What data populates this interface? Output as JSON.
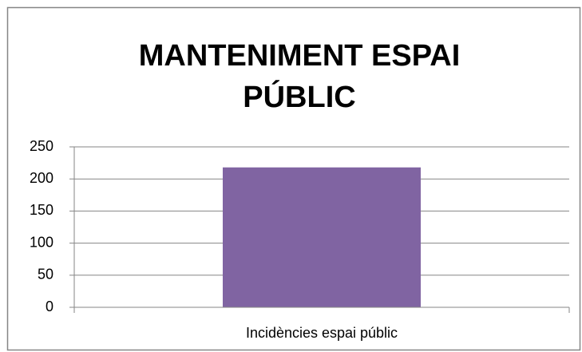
{
  "chart_data": {
    "type": "bar",
    "title": "MANTENIMENT ESPAI PÚBLIC",
    "categories": [
      "Incidències espai públic"
    ],
    "values": [
      218
    ],
    "color": "#8064a2",
    "ylim": [
      0,
      250
    ],
    "yticks": [
      0,
      50,
      100,
      150,
      200,
      250
    ],
    "grid": true
  }
}
